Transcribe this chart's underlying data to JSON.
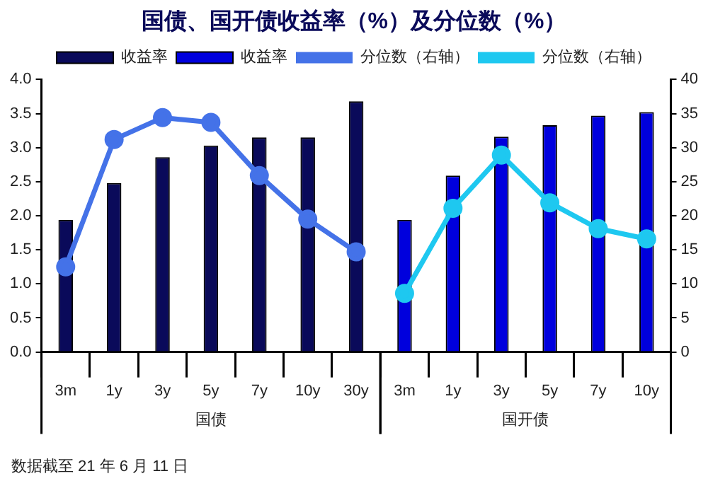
{
  "chart_data": {
    "type": "bar",
    "title": "国债、国开债收益率（%）及分位数（%）",
    "categories": [
      "3m",
      "1y",
      "3y",
      "5y",
      "7y",
      "10y",
      "30y",
      "3m",
      "1y",
      "3y",
      "5y",
      "7y",
      "10y"
    ],
    "series": [
      {
        "name": "收益率",
        "color": "#0a0a5a",
        "values": [
          1.94,
          2.48,
          2.86,
          3.03,
          3.15,
          3.15,
          3.68,
          null,
          null,
          null,
          null,
          null,
          null
        ]
      },
      {
        "name": "收益率",
        "color": "#0000dd",
        "values": [
          null,
          null,
          null,
          null,
          null,
          null,
          null,
          1.94,
          2.59,
          3.16,
          3.33,
          3.47,
          3.52
        ]
      },
      {
        "name": "分位数（右轴）",
        "type": "line",
        "axis": "y2",
        "color": "#4472e8",
        "values": [
          12.5,
          31.2,
          34.4,
          33.7,
          25.9,
          19.5,
          14.7,
          null,
          null,
          null,
          null,
          null,
          null
        ]
      },
      {
        "name": "分位数（右轴）",
        "type": "line",
        "axis": "y2",
        "color": "#1ec8f0",
        "values": [
          null,
          null,
          null,
          null,
          null,
          null,
          null,
          8.6,
          21.1,
          28.9,
          21.9,
          18.1,
          16.6
        ]
      }
    ],
    "ylim": [
      0,
      4
    ],
    "yticks": [
      {
        "value": 0,
        "label": "0.0"
      },
      {
        "value": 0.5,
        "label": "0.5"
      },
      {
        "value": 1,
        "label": "1.0"
      },
      {
        "value": 1.5,
        "label": "1.5"
      },
      {
        "value": 2,
        "label": "2.0"
      },
      {
        "value": 2.5,
        "label": "2.5"
      },
      {
        "value": 3,
        "label": "3.0"
      },
      {
        "value": 3.5,
        "label": "3.5"
      },
      {
        "value": 4,
        "label": "4.0"
      }
    ],
    "y2lim": [
      0,
      40
    ],
    "y2ticks": [
      0,
      5,
      10,
      15,
      20,
      25,
      30,
      35,
      40
    ],
    "marker": "circle",
    "legend": "top",
    "grid": false,
    "annotations": [
      "国债",
      "国开债",
      "数据截至 21 年 6 月 11 日"
    ]
  }
}
